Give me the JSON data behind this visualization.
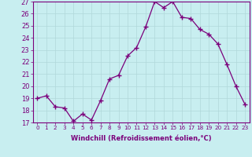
{
  "x": [
    0,
    1,
    2,
    3,
    4,
    5,
    6,
    7,
    8,
    9,
    10,
    11,
    12,
    13,
    14,
    15,
    16,
    17,
    18,
    19,
    20,
    21,
    22,
    23
  ],
  "y": [
    19.0,
    19.2,
    18.3,
    18.2,
    17.1,
    17.7,
    17.2,
    18.8,
    20.6,
    20.9,
    22.5,
    23.2,
    24.9,
    27.0,
    26.5,
    27.0,
    25.7,
    25.6,
    24.7,
    24.3,
    23.5,
    21.8,
    20.0,
    18.5
  ],
  "line_color": "#7B007B",
  "marker": "+",
  "marker_size": 4,
  "bg_color": "#c8eef0",
  "grid_color": "#b0d8da",
  "xlabel": "Windchill (Refroidissement éolien,°C)",
  "xlabel_color": "#7B007B",
  "tick_color": "#7B007B",
  "axis_color": "#7B007B",
  "ylim": [
    17,
    27
  ],
  "xlim": [
    -0.5,
    23.5
  ],
  "yticks": [
    17,
    18,
    19,
    20,
    21,
    22,
    23,
    24,
    25,
    26,
    27
  ],
  "xticks": [
    0,
    1,
    2,
    3,
    4,
    5,
    6,
    7,
    8,
    9,
    10,
    11,
    12,
    13,
    14,
    15,
    16,
    17,
    18,
    19,
    20,
    21,
    22,
    23
  ],
  "xtick_labels": [
    "0",
    "1",
    "2",
    "3",
    "4",
    "5",
    "6",
    "7",
    "8",
    "9",
    "10",
    "11",
    "12",
    "13",
    "14",
    "15",
    "16",
    "17",
    "18",
    "19",
    "20",
    "21",
    "22",
    "23"
  ],
  "ytick_labels": [
    "17",
    "18",
    "19",
    "20",
    "21",
    "22",
    "23",
    "24",
    "25",
    "26",
    "27"
  ]
}
